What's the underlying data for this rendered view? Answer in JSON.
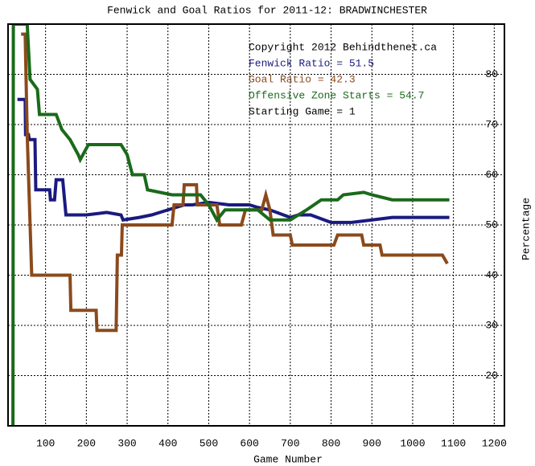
{
  "chart_data": {
    "type": "line",
    "title": "Fenwick and Goal Ratios for 2011-12: BRADWINCHESTER",
    "xlabel": "Game Number",
    "ylabel": "Percentage",
    "xlim": [
      8,
      1225
    ],
    "ylim": [
      10,
      90
    ],
    "xticks": [
      100,
      200,
      300,
      400,
      500,
      600,
      700,
      800,
      900,
      1000,
      1100,
      1200
    ],
    "yticks": [
      20,
      30,
      40,
      50,
      60,
      70,
      80
    ],
    "grid": true,
    "annotations": [
      {
        "text": "Copyright 2012 Behindthenet.ca",
        "color": "#000000"
      },
      {
        "text": "Fenwick Ratio = 51.5",
        "color": "#1a1a80"
      },
      {
        "text": "Goal Ratio = 42.3",
        "color": "#8b4a1c"
      },
      {
        "text": "Offensive Zone Starts = 54.7",
        "color": "#1a6a1a"
      },
      {
        "text": "Starting Game = 1",
        "color": "#000000"
      }
    ],
    "series": [
      {
        "name": "Fenwick Ratio",
        "color": "#1a1a80",
        "x": [
          31,
          50,
          51,
          58,
          60,
          74,
          76,
          110,
          112,
          122,
          126,
          142,
          150,
          200,
          250,
          285,
          290,
          330,
          360,
          400,
          420,
          440,
          460,
          500,
          550,
          600,
          620,
          650,
          700,
          720,
          750,
          800,
          850,
          900,
          950,
          1000,
          1050,
          1090
        ],
        "values": [
          75,
          75,
          68,
          68,
          67,
          67,
          57,
          57,
          55,
          55,
          59,
          59,
          52,
          52,
          52.5,
          52,
          51,
          51.5,
          52,
          53,
          53.5,
          54,
          54,
          54.5,
          54,
          54,
          53.5,
          53,
          51.5,
          52,
          52,
          50.5,
          50.5,
          51,
          51.5,
          51.5,
          51.5,
          51.5
        ]
      },
      {
        "name": "Goal Ratio",
        "color": "#8b4a1c",
        "x": [
          40,
          50,
          55,
          66,
          160,
          162,
          224,
          226,
          273,
          276,
          286,
          288,
          410,
          415,
          437,
          440,
          470,
          472,
          520,
          527,
          580,
          590,
          630,
          640,
          650,
          658,
          700,
          705,
          807,
          816,
          875,
          880,
          920,
          925,
          1073,
          1085
        ],
        "values": [
          88,
          88,
          68,
          40,
          40,
          33,
          33,
          29,
          29,
          44,
          44,
          50,
          50,
          54,
          54,
          58,
          58,
          54,
          54,
          50,
          50,
          53,
          53,
          56,
          53,
          48,
          48,
          46,
          46,
          48,
          48,
          46,
          46,
          44,
          44,
          42.3
        ]
      },
      {
        "name": "Offensive Zone Starts",
        "color": "#1a6a1a",
        "x": [
          20,
          21,
          55,
          62,
          80,
          85,
          96,
          126,
          140,
          160,
          180,
          185,
          205,
          285,
          300,
          313,
          342,
          350,
          410,
          480,
          500,
          520,
          540,
          560,
          570,
          620,
          650,
          700,
          740,
          776,
          816,
          830,
          880,
          900,
          950,
          1000,
          1050,
          1090
        ],
        "values": [
          10,
          90,
          90,
          79,
          77,
          72,
          72,
          72,
          69,
          67,
          64,
          63,
          66,
          66,
          64,
          60,
          60,
          57,
          56,
          56,
          54,
          51,
          53,
          53,
          53,
          53,
          51,
          51,
          53,
          55,
          55,
          56,
          56.5,
          56,
          55,
          55,
          55,
          55
        ]
      }
    ]
  }
}
